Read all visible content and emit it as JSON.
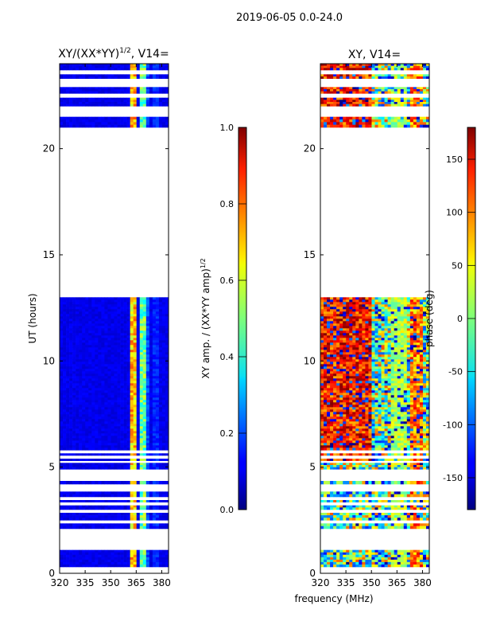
{
  "figure": {
    "suptitle": "2019-06-05 0.0-24.0",
    "xlabel": "frequency (MHz)"
  },
  "chart_data": [
    {
      "type": "heatmap",
      "title_main": "XY/(XX*YY)",
      "title_sup": "1/2",
      "title_tail": ", V14=",
      "xlabel": "",
      "ylabel": "UT (hours)",
      "xlim": [
        320,
        384
      ],
      "ylim": [
        0,
        24
      ],
      "xticks": [
        320,
        335,
        350,
        365,
        380
      ],
      "yticks": [
        0,
        5,
        10,
        15,
        20
      ],
      "colorbar": {
        "label_main": "XY amp. / (XX*YY amp)",
        "label_sup": "1/2",
        "range": [
          0.0,
          1.0
        ],
        "ticks": [
          "0.0",
          "0.2",
          "0.4",
          "0.6",
          "0.8",
          "1.0"
        ],
        "colormap": "jet"
      },
      "data_blocks_hours": [
        [
          0.3,
          1.1
        ],
        [
          2.1,
          2.35
        ],
        [
          2.5,
          2.85
        ],
        [
          3.0,
          3.2
        ],
        [
          3.35,
          3.45
        ],
        [
          3.6,
          3.85
        ],
        [
          4.2,
          4.35
        ],
        [
          4.9,
          5.2
        ],
        [
          5.3,
          5.4
        ],
        [
          5.55,
          5.65
        ],
        [
          5.8,
          13.0
        ],
        [
          21.0,
          21.5
        ],
        [
          22.0,
          22.4
        ],
        [
          22.6,
          22.9
        ],
        [
          23.3,
          23.5
        ],
        [
          23.7,
          24.0
        ]
      ],
      "band_channels_mhz": [
        [
          362,
          366
        ],
        [
          367,
          370
        ],
        [
          371,
          372
        ],
        [
          375,
          379
        ]
      ]
    },
    {
      "type": "heatmap",
      "title_main": "XY, V14=",
      "xlabel": "frequency (MHz)",
      "ylabel": "phase (deg)",
      "xlim": [
        320,
        384
      ],
      "ylim": [
        0,
        24
      ],
      "xticks": [
        320,
        335,
        350,
        365,
        380
      ],
      "yticks": [
        0,
        5,
        10,
        15,
        20
      ],
      "colorbar": {
        "label_main": "phase (deg)",
        "range": [
          -180,
          180
        ],
        "ticks": [
          "-150",
          "-100",
          "-50",
          "0",
          "50",
          "100",
          "150"
        ],
        "colormap": "jet"
      },
      "data_blocks_hours": [
        [
          0.3,
          1.1
        ],
        [
          2.1,
          2.35
        ],
        [
          2.5,
          2.85
        ],
        [
          3.0,
          3.2
        ],
        [
          3.35,
          3.45
        ],
        [
          3.6,
          3.85
        ],
        [
          4.2,
          4.35
        ],
        [
          4.9,
          5.2
        ],
        [
          5.3,
          5.4
        ],
        [
          5.55,
          5.65
        ],
        [
          5.8,
          13.0
        ],
        [
          21.0,
          21.5
        ],
        [
          22.0,
          22.4
        ],
        [
          22.6,
          22.9
        ],
        [
          23.3,
          23.5
        ],
        [
          23.7,
          24.0
        ]
      ]
    }
  ]
}
